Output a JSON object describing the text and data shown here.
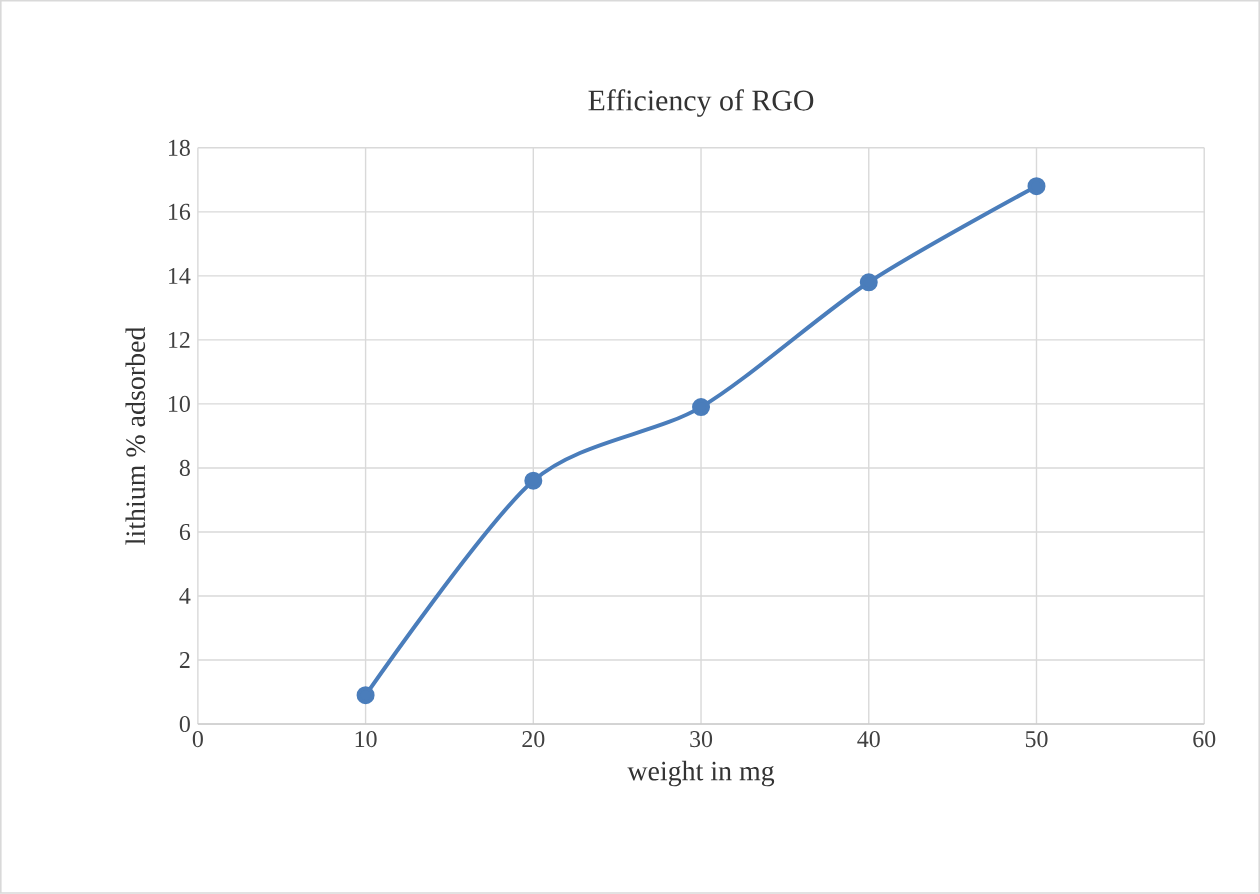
{
  "chart_data": {
    "type": "line",
    "title": "Efficiency of RGO",
    "xlabel": "weight in mg",
    "ylabel": "lithium % adsorbed",
    "x": [
      10,
      20,
      30,
      40,
      50
    ],
    "series": [
      {
        "color": "#4a7dbb",
        "values": [
          0.9,
          7.6,
          9.9,
          13.8,
          16.8
        ]
      }
    ],
    "xlim": [
      0,
      60
    ],
    "xticks": [
      0,
      10,
      20,
      30,
      40,
      50,
      60
    ],
    "ylim": [
      0,
      18
    ],
    "yticks": [
      0,
      2,
      4,
      6,
      8,
      10,
      12,
      14,
      16,
      18
    ],
    "grid": true,
    "marker": "circle",
    "line_style": "solid"
  }
}
